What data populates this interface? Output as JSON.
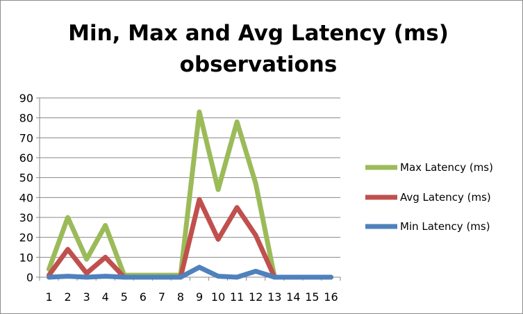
{
  "chart_data": {
    "type": "line",
    "title_lines": [
      "Min, Max and Avg Latency (ms)",
      "observations"
    ],
    "categories": [
      "1",
      "2",
      "3",
      "4",
      "5",
      "6",
      "7",
      "8",
      "9",
      "10",
      "11",
      "12",
      "13",
      "14",
      "15",
      "16"
    ],
    "ylim": [
      0,
      90
    ],
    "yticks": [
      0,
      10,
      20,
      30,
      40,
      50,
      60,
      70,
      80,
      90
    ],
    "grid": "horizontal",
    "legend_position": "right",
    "series": [
      {
        "name": "Max Latency (ms)",
        "color": "#9bbb59",
        "values": [
          4,
          30,
          9,
          26,
          1,
          1,
          1,
          1,
          83,
          44,
          78,
          47,
          0,
          0,
          0,
          0
        ]
      },
      {
        "name": "Avg Latency (ms)",
        "color": "#c0504d",
        "values": [
          1,
          14,
          2,
          10,
          0,
          0,
          0,
          0,
          39,
          19,
          35,
          21,
          0,
          0,
          0,
          0
        ]
      },
      {
        "name": "Min Latency (ms)",
        "color": "#4f81bd",
        "values": [
          0,
          0.5,
          0,
          0.5,
          0,
          0,
          0,
          0,
          5,
          0.5,
          0,
          3,
          0,
          0,
          0,
          0
        ]
      }
    ]
  }
}
